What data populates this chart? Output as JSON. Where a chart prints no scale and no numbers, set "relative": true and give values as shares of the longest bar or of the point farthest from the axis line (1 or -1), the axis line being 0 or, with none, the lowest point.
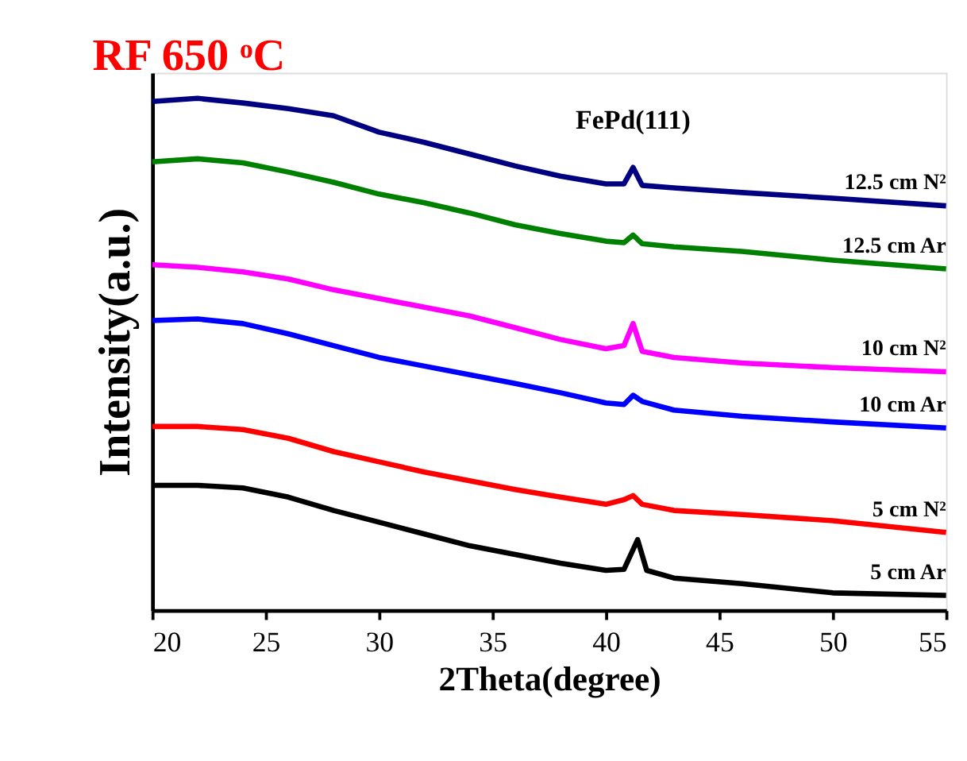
{
  "chart_data": {
    "type": "line",
    "title": "RF 650 ᵒC",
    "xlabel": "2Theta(degree)",
    "ylabel": "Intensity(a.u.)",
    "relative": true,
    "legend": false,
    "grid": false,
    "marker": "none",
    "line_style": "solid",
    "xlim": [
      20,
      55
    ],
    "xticks": [
      20,
      25,
      30,
      35,
      40,
      45,
      50,
      55
    ],
    "x": [
      20,
      22,
      24,
      26,
      28,
      30,
      32,
      34,
      36,
      38,
      40,
      40.8,
      41.2,
      41.6,
      43,
      46,
      50,
      55
    ],
    "annotations": [
      {
        "text": "FePd(111)",
        "x": 41.2,
        "y": 0.865
      }
    ],
    "series": [
      {
        "name": "12.5 cm N²",
        "color": "#000080",
        "values": [
          0.994,
          1.0,
          0.991,
          0.98,
          0.966,
          0.934,
          0.914,
          0.891,
          0.868,
          0.848,
          0.833,
          0.833,
          0.865,
          0.83,
          0.825,
          0.816,
          0.805,
          0.79
        ]
      },
      {
        "name": "12.5 cm Ar",
        "color": "#008000",
        "values": [
          0.876,
          0.882,
          0.874,
          0.856,
          0.836,
          0.813,
          0.796,
          0.776,
          0.753,
          0.736,
          0.721,
          0.718,
          0.733,
          0.716,
          0.71,
          0.701,
          0.684,
          0.667
        ]
      },
      {
        "name": "10 cm N²",
        "color": "#ff00ff",
        "values": [
          0.675,
          0.67,
          0.661,
          0.647,
          0.626,
          0.609,
          0.592,
          0.575,
          0.552,
          0.529,
          0.511,
          0.517,
          0.56,
          0.506,
          0.494,
          0.483,
          0.474,
          0.466
        ]
      },
      {
        "name": "10 cm Ar",
        "color": "#0000ff",
        "values": [
          0.566,
          0.569,
          0.56,
          0.54,
          0.517,
          0.494,
          0.477,
          0.46,
          0.443,
          0.425,
          0.405,
          0.402,
          0.42,
          0.408,
          0.391,
          0.379,
          0.368,
          0.356
        ]
      },
      {
        "name": "5 cm N²",
        "color": "#ff0000",
        "values": [
          0.359,
          0.359,
          0.353,
          0.336,
          0.31,
          0.29,
          0.27,
          0.253,
          0.236,
          0.221,
          0.207,
          0.216,
          0.224,
          0.207,
          0.195,
          0.187,
          0.175,
          0.152
        ]
      },
      {
        "name": "5 cm Ar",
        "color": "#000000",
        "x": [
          20,
          22,
          24,
          26,
          28,
          30,
          32,
          34,
          36,
          38,
          40,
          40.8,
          41.4,
          41.8,
          43,
          46,
          50,
          55
        ],
        "values": [
          0.244,
          0.244,
          0.239,
          0.221,
          0.195,
          0.172,
          0.149,
          0.126,
          0.109,
          0.092,
          0.078,
          0.08,
          0.138,
          0.078,
          0.063,
          0.052,
          0.034,
          0.029
        ]
      }
    ]
  }
}
